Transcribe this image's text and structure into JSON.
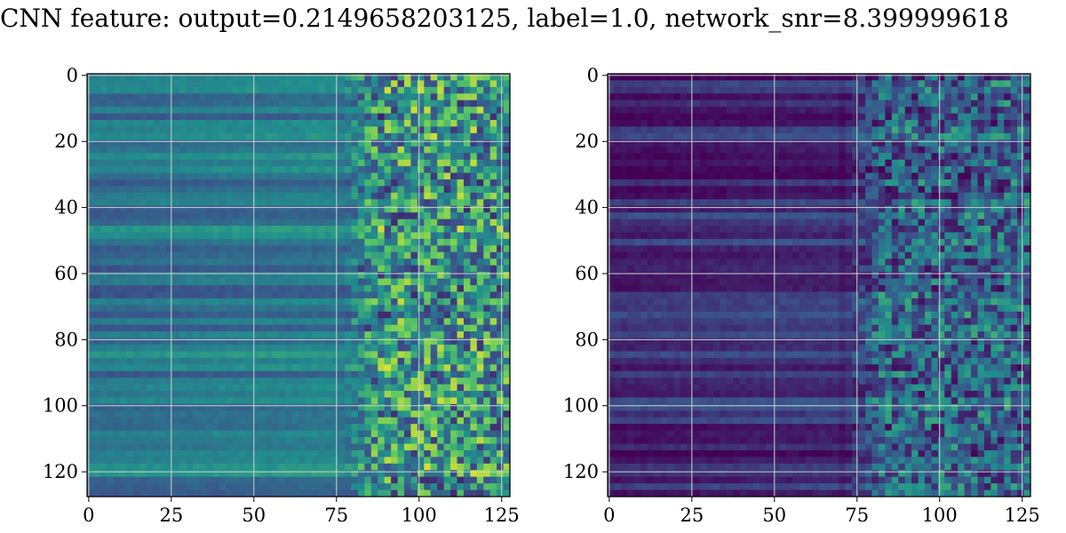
{
  "chart_data": {
    "type": "heatmap",
    "title": "CNN feature: output=0.2149658203125, label=1.0, network_snr=8.399999618",
    "colormap": "viridis",
    "grid": true,
    "panels": [
      {
        "name": "",
        "shape": [
          128,
          128
        ],
        "xlim": [
          0,
          127
        ],
        "ylim": [
          127,
          0
        ],
        "xticks": [
          "0",
          "25",
          "50",
          "75",
          "100",
          "125"
        ],
        "yticks": [
          "0",
          "20",
          "40",
          "60",
          "80",
          "100",
          "120"
        ],
        "base_intensity": 0.38,
        "noise_onset_column": 75,
        "colors": [
          "#440154",
          "#3b528b",
          "#21908d",
          "#5dc962",
          "#fde725"
        ]
      },
      {
        "name": "",
        "shape": [
          128,
          128
        ],
        "xlim": [
          0,
          127
        ],
        "ylim": [
          127,
          0
        ],
        "xticks": [
          "0",
          "25",
          "50",
          "75",
          "100",
          "125"
        ],
        "yticks": [
          "0",
          "20",
          "40",
          "60",
          "80",
          "100",
          "120"
        ],
        "base_intensity": 0.12,
        "noise_onset_column": 70,
        "colors": [
          "#440154",
          "#3b528b",
          "#21908d",
          "#5dc962",
          "#fde725"
        ]
      }
    ]
  }
}
